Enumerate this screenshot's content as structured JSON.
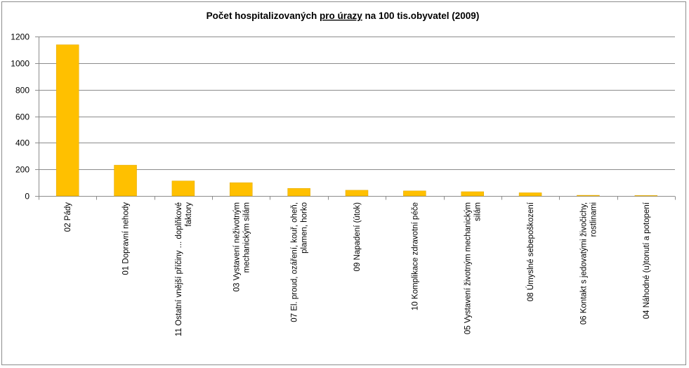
{
  "chart_data": {
    "type": "bar",
    "title_parts": [
      "Počet hospitalizovaných ",
      "pro úrazy",
      " na 100 tis.obyvatel (2009)"
    ],
    "categories": [
      [
        "02 Pády"
      ],
      [
        "01 Dopravní nehody"
      ],
      [
        "11 Ostatní vnější příčiny ... doplňkové",
        "faktory"
      ],
      [
        "03 Vystavení neživotným",
        "mechanickým silám"
      ],
      [
        "07 El. proud, ozáření, kouř, oheň,",
        "plamen, horko"
      ],
      [
        "09 Napadení (útok)"
      ],
      [
        "10 Komplikace zdravotní péče"
      ],
      [
        "05 Vystavení životným mechanickým",
        "silám"
      ],
      [
        "08 Úmyslné sebepoškození"
      ],
      [
        "06 Kontakt s jedovatými živočichy,",
        "rostlinami"
      ],
      [
        "04 Náhodné (u)tonutí a potopení"
      ]
    ],
    "values": [
      1138,
      232,
      113,
      100,
      57,
      43,
      38,
      32,
      24,
      5,
      1
    ],
    "yticks": [
      0,
      200,
      400,
      600,
      800,
      1000,
      1200
    ],
    "ylim": [
      0,
      1200
    ],
    "grid": true,
    "legend": "none",
    "colors": {
      "bar": "#FFC000",
      "bar_edge": "#E0A800",
      "grid": "#8c8c8c",
      "axis": "#8c8c8c"
    }
  }
}
